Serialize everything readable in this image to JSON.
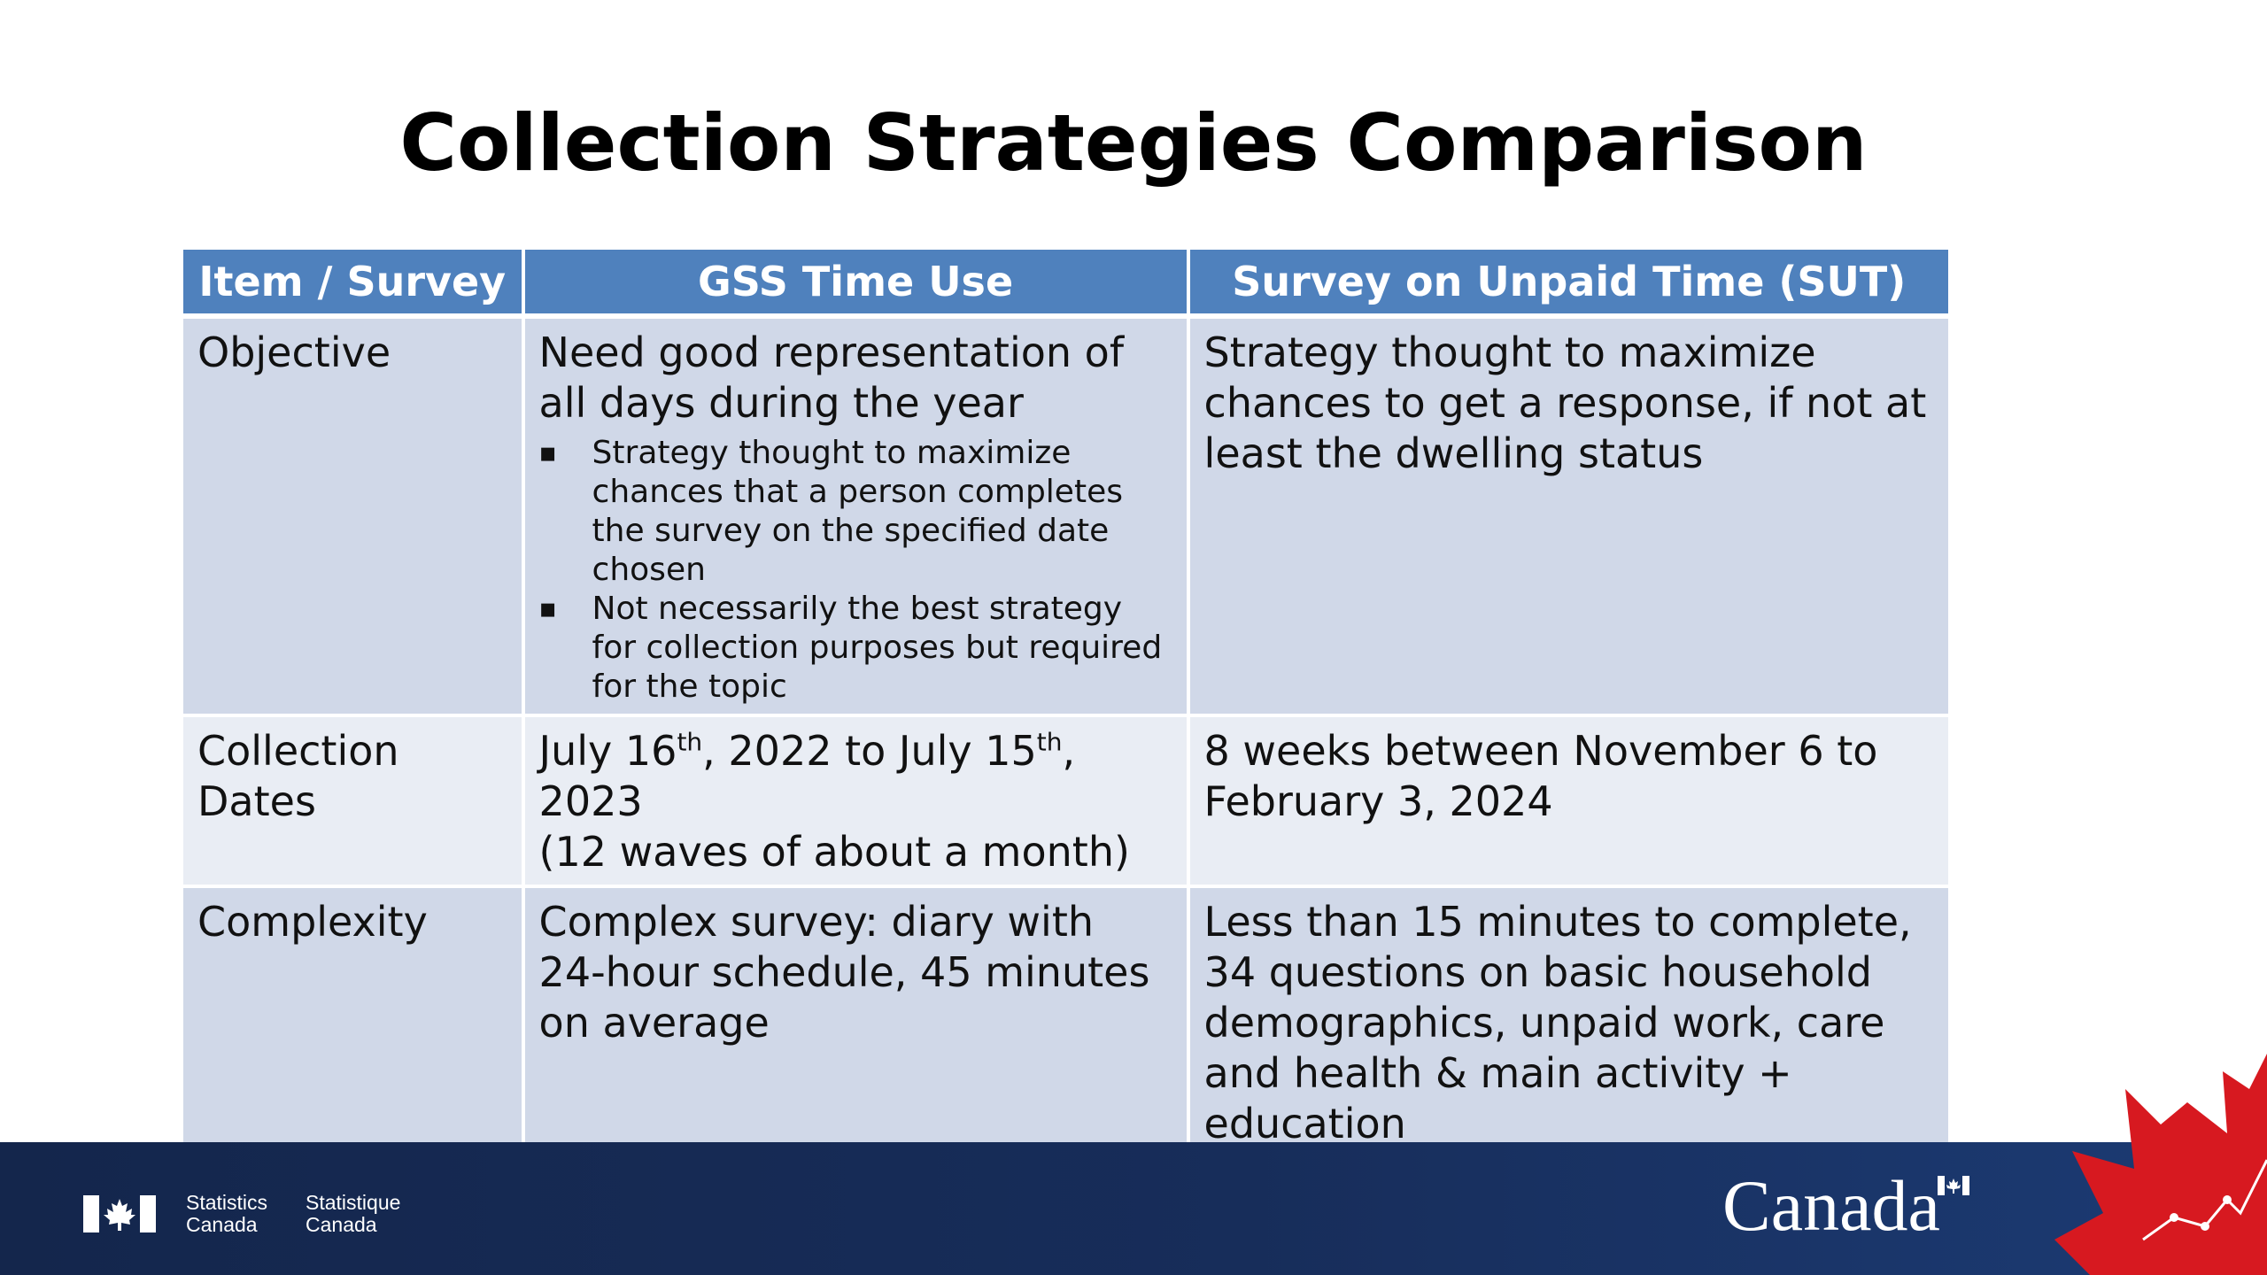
{
  "slide": {
    "title": "Collection Strategies Comparison"
  },
  "table": {
    "headers": [
      "Item / Survey",
      "GSS Time Use",
      "Survey on Unpaid Time (SUT)"
    ],
    "rows": [
      {
        "item": "Objective",
        "gss": "Need good representation of all days during the year",
        "gss_bullets": [
          "Strategy thought to maximize chances that a person completes the survey on the specified date chosen",
          "Not necessarily the best strategy for collection purposes but required for the topic"
        ],
        "sut": "Strategy thought to maximize chances to get a response, if not at least the dwelling status"
      },
      {
        "item": "Collection Dates",
        "gss_line1_a": "July 16",
        "gss_line1_sup_a": "th",
        "gss_line1_b": ", 2022 to July 15",
        "gss_line1_sup_b": "th",
        "gss_line1_c": ", 2023",
        "gss_line2": "(12 waves of about a month)",
        "sut": "8 weeks between November 6 to February 3, 2024"
      },
      {
        "item": "Complexity",
        "gss": "Complex survey: diary with 24-hour schedule, 45 minutes on average",
        "sut": "Less than 15 minutes to complete, 34 questions on basic household demographics, unpaid work, care and health & main activity + education"
      }
    ]
  },
  "footer": {
    "statcan_en_1": "Statistics",
    "statcan_en_2": "Canada",
    "statcan_fr_1": "Statistique",
    "statcan_fr_2": "Canada",
    "wordmark": "Canada",
    "icons": [
      "canada-flag-icon",
      "maple-leaf-graphic"
    ],
    "bar_color": "#14264c",
    "accent_red": "#d71920"
  },
  "colors": {
    "header_bg": "#4f81bd",
    "row_dark": "#d0d8e8",
    "row_light": "#e9edf4"
  }
}
